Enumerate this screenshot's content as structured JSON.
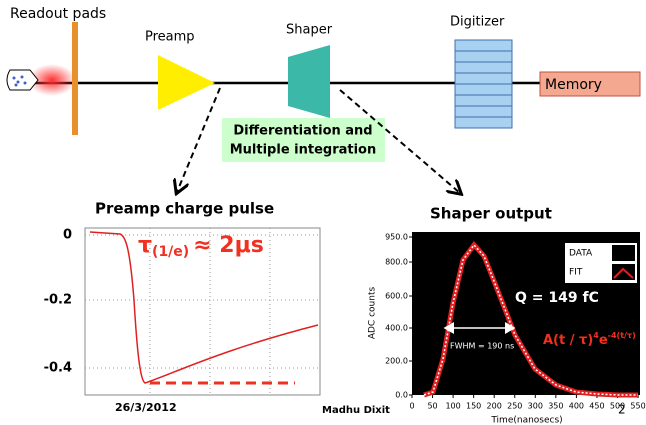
{
  "pipeline": {
    "readout": "Readout pads",
    "preamp": "Preamp",
    "shaper": "Shaper",
    "digitizer": "Digitizer",
    "memory": "Memory",
    "note": [
      "Differentiation and",
      "Multiple integration"
    ]
  },
  "preamp_plot": {
    "title": "Preamp charge pulse",
    "yticks": [
      "0",
      "-0.2",
      "-0.4"
    ],
    "tau": [
      "τ",
      "(1/e)",
      "≈ 2μs"
    ],
    "date": "26/3/2012"
  },
  "shaper_plot": {
    "title": "Shaper output",
    "yticks": [
      "950.0",
      "800.0",
      "600.0",
      "400.0",
      "200.0",
      "0.0"
    ],
    "xticks": [
      "0",
      "50",
      "100",
      "150",
      "200",
      "250",
      "300",
      "350",
      "400",
      "450",
      "500",
      "550"
    ],
    "xlabel": "Time(nanosecs)",
    "ylabel": "ADC counts",
    "legend": [
      "DATA",
      "FIT"
    ],
    "charge": "Q = 149 fC",
    "fit": [
      "A(t / τ)",
      "4",
      "e",
      "-4(t/τ)"
    ],
    "fwhm": "FWHM = 190 ns"
  },
  "footer": {
    "author": "Madhu Dixit",
    "page": "2"
  }
}
